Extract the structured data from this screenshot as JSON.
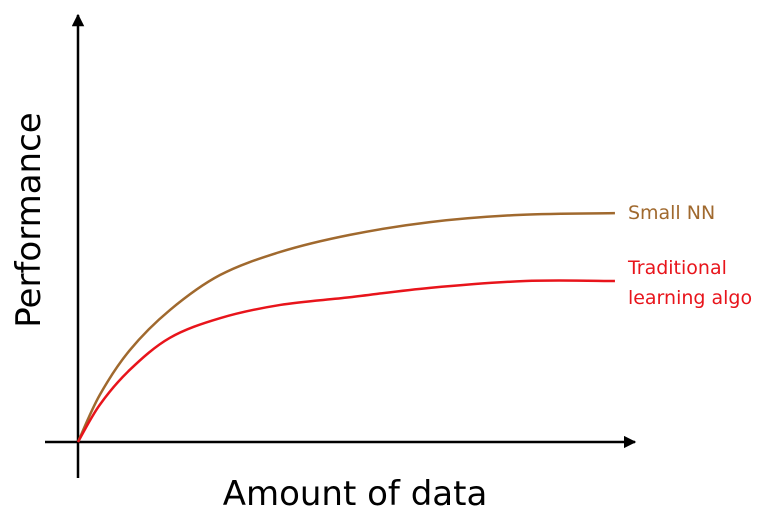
{
  "chart_data": {
    "type": "line",
    "x_label": "Amount of data",
    "y_label": "Performance",
    "xlim": [
      0,
      100
    ],
    "ylim": [
      0,
      100
    ],
    "series": [
      {
        "name": "Small NN",
        "color": "#a0692e",
        "x": [
          0,
          3.9,
          9.3,
          16.5,
          25.5,
          36.3,
          48.8,
          63.2,
          79.4,
          96.4
        ],
        "values": [
          0,
          11.0,
          21.5,
          30.9,
          39.1,
          44.5,
          48.5,
          51.5,
          53.2,
          53.6
        ]
      },
      {
        "name": "Traditional learning algo",
        "color": "#e8141b",
        "x": [
          0,
          3.9,
          9.3,
          16.5,
          25.5,
          36.3,
          48.8,
          63.2,
          80.3,
          96.4
        ],
        "values": [
          0,
          8.7,
          16.9,
          24.4,
          29.0,
          32.1,
          33.9,
          36.1,
          37.7,
          37.7
        ]
      }
    ]
  }
}
